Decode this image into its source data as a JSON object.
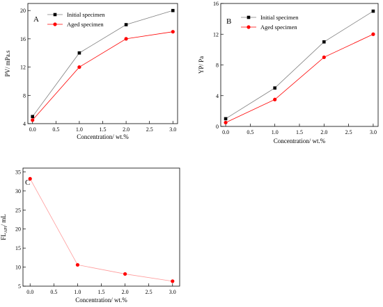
{
  "chart_data": [
    {
      "type": "line",
      "panel_label": "A",
      "xlabel": "Concentration/ wt.%",
      "ylabel": "PV/ mPa.s",
      "ylabel_sub": "",
      "ylabel_tail": "",
      "xlim": [
        -0.1,
        3.1
      ],
      "ylim": [
        4,
        21
      ],
      "xticks": [
        0.0,
        0.5,
        1.0,
        1.5,
        2.0,
        2.5,
        3.0
      ],
      "xtick_labels": [
        "0.0",
        "0.5",
        "1.0",
        "1.5",
        "2.0",
        "2.5",
        "3.0"
      ],
      "yticks": [
        4,
        8,
        12,
        16,
        20
      ],
      "ytick_labels": [
        "4",
        "8",
        "12",
        "16",
        "20"
      ],
      "grid": false,
      "legend_position": "top-left",
      "series": [
        {
          "name": "Initial specimen",
          "color": "#000000",
          "line_color": "#7f7f7f",
          "marker": "square",
          "x": [
            0,
            1,
            2,
            3
          ],
          "y": [
            5,
            14,
            18,
            20
          ]
        },
        {
          "name": "Aged specimen",
          "color": "#ff0000",
          "line_color": "#ff0000",
          "marker": "circle",
          "x": [
            0,
            1,
            2,
            3
          ],
          "y": [
            4.5,
            12,
            16,
            17
          ]
        }
      ]
    },
    {
      "type": "line",
      "panel_label": "B",
      "xlabel": "Concentration/ wt.%",
      "ylabel": "YP/ Pa",
      "ylabel_sub": "",
      "ylabel_tail": "",
      "xlim": [
        -0.1,
        3.1
      ],
      "ylim": [
        0,
        16
      ],
      "xticks": [
        0.0,
        0.5,
        1.0,
        1.5,
        2.0,
        2.5,
        3.0
      ],
      "xtick_labels": [
        "0.0",
        "0.5",
        "1.0",
        "1.5",
        "2.0",
        "2.5",
        "3.0"
      ],
      "yticks": [
        0,
        4,
        8,
        12,
        16
      ],
      "ytick_labels": [
        "0",
        "4",
        "8",
        "12",
        "16"
      ],
      "grid": false,
      "legend_position": "top-left",
      "series": [
        {
          "name": "Initial specimen",
          "color": "#000000",
          "line_color": "#7f7f7f",
          "marker": "square",
          "x": [
            0,
            1,
            2,
            3
          ],
          "y": [
            1,
            5,
            11,
            15
          ]
        },
        {
          "name": "Aged specimen",
          "color": "#ff0000",
          "line_color": "#ff0000",
          "marker": "circle",
          "x": [
            0,
            1,
            2,
            3
          ],
          "y": [
            0.5,
            3.5,
            9,
            12
          ]
        }
      ]
    },
    {
      "type": "line",
      "panel_label": "C",
      "xlabel": "Concentration/ wt.%",
      "ylabel": "FL",
      "ylabel_sub": "API",
      "ylabel_tail": "/ mL",
      "xlim": [
        -0.15,
        3.15
      ],
      "ylim": [
        5,
        36
      ],
      "xticks": [
        0.0,
        0.5,
        1.0,
        1.5,
        2.0,
        2.5,
        3.0
      ],
      "xtick_labels": [
        "0.0",
        "0.5",
        "1.0",
        "1.5",
        "2.0",
        "2.5",
        "3.0"
      ],
      "yticks": [
        5,
        10,
        15,
        20,
        25,
        30,
        35
      ],
      "ytick_labels": [
        "5",
        "10",
        "15",
        "20",
        "25",
        "30",
        "35"
      ],
      "grid": false,
      "legend_position": "",
      "series": [
        {
          "color": "#ff0000",
          "line_color": "#ff9999",
          "marker": "circle",
          "x": [
            0,
            1,
            2,
            3
          ],
          "y": [
            33.2,
            10.6,
            8.2,
            6.3
          ]
        }
      ]
    }
  ]
}
